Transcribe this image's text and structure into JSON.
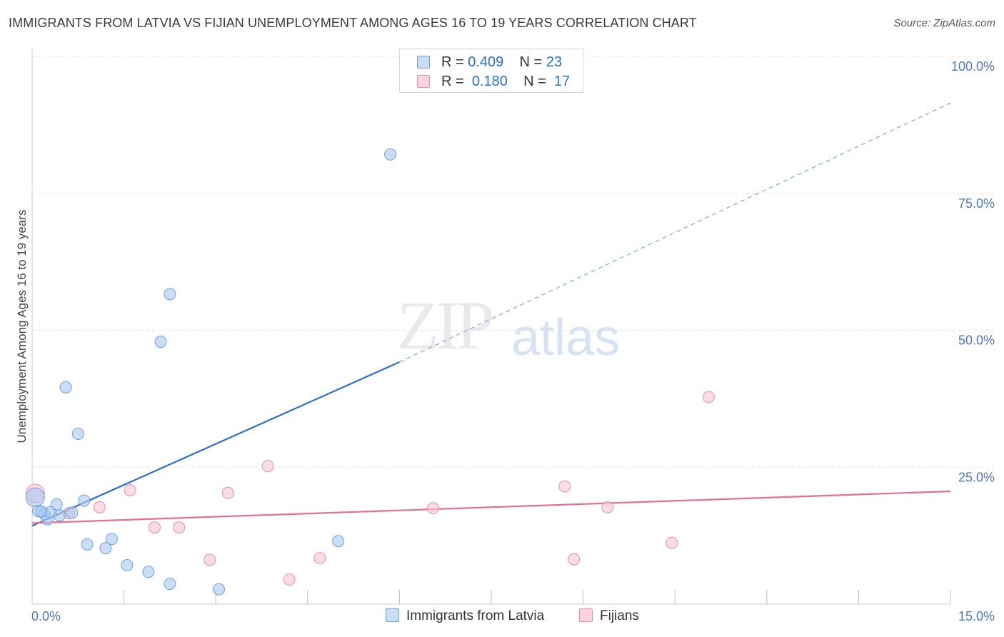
{
  "title": "IMMIGRANTS FROM LATVIA VS FIJIAN UNEMPLOYMENT AMONG AGES 16 TO 19 YEARS CORRELATION CHART",
  "source": "Source: ZipAtlas.com",
  "watermark": {
    "zip": "ZIP",
    "atlas": "atlas"
  },
  "legend": {
    "rows": [
      {
        "r_label": "R =",
        "r_value": "0.409",
        "n_label": "N =",
        "n_value": "23",
        "color": "#a9c8f0"
      },
      {
        "r_label": "R =",
        "r_value": "0.180",
        "n_label": "N =",
        "n_value": "17",
        "color": "#f5b8cb"
      }
    ]
  },
  "bottom_legend": {
    "series1": "Immigrants from Latvia",
    "series2": "Fijians"
  },
  "colors": {
    "blue_fill": "#a9c8f0",
    "blue_stroke": "#6f9fdc",
    "blue_line": "#2a6fd6",
    "pink_fill": "#f7c4d4",
    "pink_stroke": "#e58fac",
    "pink_line": "#e56d96",
    "grid": "#e3e3e3",
    "tick": "#4a78c4"
  },
  "chart_data": {
    "type": "scatter",
    "title": "IMMIGRANTS FROM LATVIA VS FIJIAN UNEMPLOYMENT AMONG AGES 16 TO 19 YEARS CORRELATION CHART",
    "xlabel": "",
    "ylabel": "Unemployment Among Ages 16 to 19 years",
    "xlim": [
      0,
      15
    ],
    "ylim": [
      0,
      100
    ],
    "x_tick_labels": [
      "0.0%",
      "15.0%"
    ],
    "y_ticks": [
      25,
      50,
      75,
      100
    ],
    "y_tick_labels": [
      "25.0%",
      "50.0%",
      "75.0%",
      "100.0%"
    ],
    "series": [
      {
        "name": "Immigrants from Latvia",
        "points": [
          [
            0.05,
            19.5
          ],
          [
            0.1,
            17
          ],
          [
            0.2,
            16.5
          ],
          [
            0.25,
            15.5
          ],
          [
            0.3,
            16.8
          ],
          [
            0.4,
            18.2
          ],
          [
            0.45,
            16.2
          ],
          [
            0.55,
            39.6
          ],
          [
            0.65,
            16.7
          ],
          [
            0.75,
            31.1
          ],
          [
            0.85,
            18.9
          ],
          [
            0.9,
            10.9
          ],
          [
            1.2,
            10.2
          ],
          [
            1.3,
            11.9
          ],
          [
            1.55,
            7.1
          ],
          [
            1.9,
            5.9
          ],
          [
            2.1,
            47.9
          ],
          [
            2.25,
            56.6
          ],
          [
            2.25,
            3.7
          ],
          [
            3.05,
            2.7
          ],
          [
            5.0,
            11.5
          ],
          [
            5.85,
            82.1
          ],
          [
            0.15,
            16.9
          ]
        ],
        "trend": {
          "x0": 0,
          "y0": 14.3,
          "x1": 6.0,
          "y1": 44.2,
          "dashed_to_x": 15.0,
          "dashed_to_y": 91.5
        }
      },
      {
        "name": "Fijians",
        "points": [
          [
            0.05,
            20.2
          ],
          [
            0.6,
            16.6
          ],
          [
            1.1,
            17.7
          ],
          [
            1.6,
            20.8
          ],
          [
            2.0,
            14.0
          ],
          [
            2.4,
            14.0
          ],
          [
            2.9,
            8.1
          ],
          [
            3.2,
            20.3
          ],
          [
            3.85,
            25.2
          ],
          [
            4.2,
            4.5
          ],
          [
            4.7,
            8.4
          ],
          [
            6.55,
            17.5
          ],
          [
            8.7,
            21.5
          ],
          [
            8.85,
            8.2
          ],
          [
            9.4,
            17.7
          ],
          [
            10.45,
            11.2
          ],
          [
            11.05,
            37.8
          ]
        ],
        "trend": {
          "x0": 0,
          "y0": 14.8,
          "x1": 15.0,
          "y1": 20.6
        }
      }
    ]
  }
}
